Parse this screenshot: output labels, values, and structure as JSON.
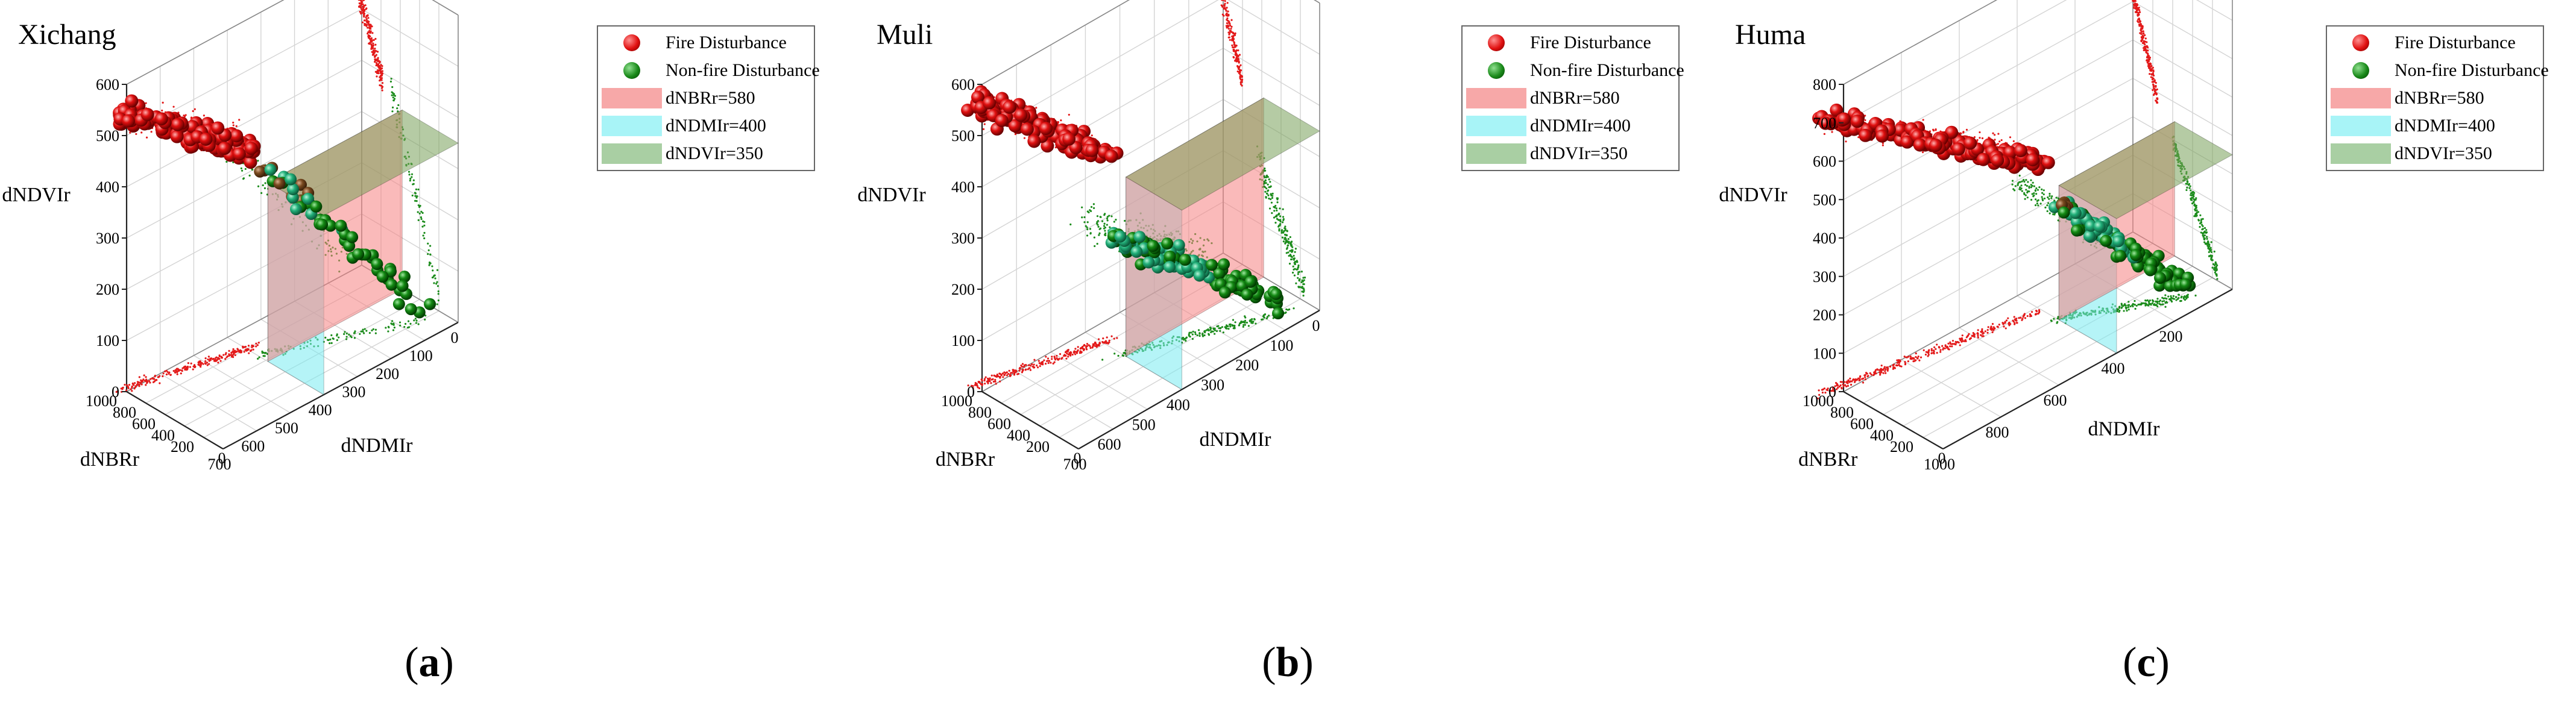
{
  "chart_data": [
    {
      "type": "scatter3d",
      "panel_label": "a",
      "title": "Xichang",
      "x_axis": {
        "label": "dNBRr",
        "ticks": [
          "1000",
          "800",
          "600",
          "400",
          "200"
        ]
      },
      "y_axis": {
        "label": "dNDMIr",
        "ticks": [
          "700",
          "600",
          "500",
          "400",
          "300",
          "200",
          "100",
          "0"
        ]
      },
      "z_axis": {
        "label": "dNDVIr",
        "ticks": [
          "0",
          "100",
          "200",
          "300",
          "400",
          "500",
          "600"
        ]
      },
      "corner_tick": "0",
      "legend": [
        {
          "label": "Fire Disturbance",
          "kind": "ball",
          "color": "#e01010"
        },
        {
          "label": "Non-fire Disturbance",
          "kind": "ball",
          "color": "#1a8a1a"
        },
        {
          "label": "dNBRr=580",
          "kind": "plane",
          "color": "#f7a8a8"
        },
        {
          "label": "dNDMIr=400",
          "kind": "plane",
          "color": "#a8f4f7"
        },
        {
          "label": "dNDVIr=350",
          "kind": "plane",
          "color": "#a9cfa3"
        }
      ],
      "thresholds": {
        "dNBRr": 580,
        "dNDMIr": 400,
        "dNDVIr": 350
      },
      "series": [
        {
          "name": "Fire Disturbance",
          "clusters": [
            {
              "dNBRr_range": [
                780,
                1050
              ],
              "dNDMIr_range": [
                380,
                700
              ],
              "dNDVIr_range": [
                380,
                540
              ],
              "approx_count": 120
            }
          ]
        },
        {
          "name": "Non-fire Disturbance",
          "clusters": [
            {
              "dNBRr_range": [
                200,
                700
              ],
              "dNDMIr_range": [
                50,
                400
              ],
              "dNDVIr_range": [
                30,
                380
              ],
              "approx_count": 55
            }
          ]
        }
      ]
    },
    {
      "type": "scatter3d",
      "panel_label": "b",
      "title": "Muli",
      "x_axis": {
        "label": "dNBRr",
        "ticks": [
          "1000",
          "800",
          "600",
          "400",
          "200"
        ]
      },
      "y_axis": {
        "label": "dNDMIr",
        "ticks": [
          "700",
          "600",
          "500",
          "400",
          "300",
          "200",
          "100",
          "0"
        ]
      },
      "z_axis": {
        "label": "dNDVIr",
        "ticks": [
          "0",
          "100",
          "200",
          "300",
          "400",
          "500",
          "600"
        ]
      },
      "corner_tick": "0",
      "legend": [
        {
          "label": "Fire Disturbance",
          "kind": "ball",
          "color": "#e01010"
        },
        {
          "label": "Non-fire Disturbance",
          "kind": "ball",
          "color": "#1a8a1a"
        },
        {
          "label": "dNBRr=580",
          "kind": "plane",
          "color": "#f7a8a8"
        },
        {
          "label": "dNDMIr=400",
          "kind": "plane",
          "color": "#a8f4f7"
        },
        {
          "label": "dNDVIr=350",
          "kind": "plane",
          "color": "#a9cfa3"
        }
      ],
      "thresholds": {
        "dNBRr": 580,
        "dNDMIr": 400,
        "dNDVIr": 350
      },
      "series": [
        {
          "name": "Fire Disturbance",
          "clusters": [
            {
              "dNBRr_range": [
                800,
                1100
              ],
              "dNDMIr_range": [
                380,
                700
              ],
              "dNDVIr_range": [
                360,
                560
              ],
              "approx_count": 130
            }
          ]
        },
        {
          "name": "Non-fire Disturbance",
          "clusters": [
            {
              "dNBRr_range": [
                150,
                650
              ],
              "dNDMIr_range": [
                50,
                420
              ],
              "dNDVIr_range": [
                20,
                230
              ],
              "approx_count": 110
            }
          ]
        }
      ]
    },
    {
      "type": "scatter3d",
      "panel_label": "c",
      "title": "Huma",
      "x_axis": {
        "label": "dNBRr",
        "ticks": [
          "1000",
          "800",
          "600",
          "400",
          "200"
        ]
      },
      "y_axis": {
        "label": "dNDMIr",
        "ticks": [
          "1000",
          "800",
          "600",
          "400",
          "200"
        ]
      },
      "z_axis": {
        "label": "dNDVIr",
        "ticks": [
          "0",
          "100",
          "200",
          "300",
          "400",
          "500",
          "600",
          "700",
          "800"
        ]
      },
      "corner_tick": "0",
      "legend": [
        {
          "label": "Fire Disturbance",
          "kind": "ball",
          "color": "#e01010"
        },
        {
          "label": "Non-fire Disturbance",
          "kind": "ball",
          "color": "#1a8a1a"
        },
        {
          "label": "dNBRr=580",
          "kind": "plane",
          "color": "#f7a8a8"
        },
        {
          "label": "dNDMIr=400",
          "kind": "plane",
          "color": "#a8f4f7"
        },
        {
          "label": "dNDVIr=350",
          "kind": "plane",
          "color": "#a9cfa3"
        }
      ],
      "thresholds": {
        "dNBRr": 580,
        "dNDMIr": 400,
        "dNDVIr": 350
      },
      "series": [
        {
          "name": "Fire Disturbance",
          "clusters": [
            {
              "dNBRr_range": [
                750,
                1100
              ],
              "dNDMIr_range": [
                400,
                1050
              ],
              "dNDVIr_range": [
                380,
                720
              ],
              "approx_count": 170
            }
          ]
        },
        {
          "name": "Non-fire Disturbance",
          "clusters": [
            {
              "dNBRr_range": [
                150,
                600
              ],
              "dNDMIr_range": [
                100,
                400
              ],
              "dNDVIr_range": [
                20,
                300
              ],
              "approx_count": 110
            }
          ]
        }
      ]
    }
  ]
}
